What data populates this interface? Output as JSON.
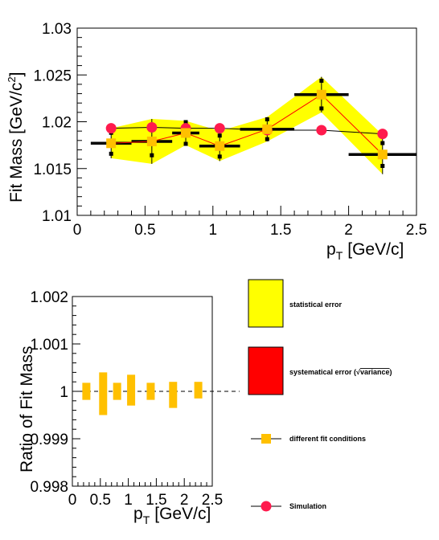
{
  "chart_data": [
    {
      "type": "scatter",
      "xlabel_main": "p",
      "xlabel_sub": "T",
      "xlabel_unit": "[GeV/c]",
      "ylabel_pre": "Fit Mass [GeV/c",
      "ylabel_sup": "2",
      "ylabel_post": "]",
      "xlim": [
        0,
        2.5
      ],
      "ylim": [
        1.01,
        1.03
      ],
      "x_ticks": [
        "0",
        "0.5",
        "1",
        "1.5",
        "2",
        "2.5"
      ],
      "y_ticks": [
        "1.01",
        "1.015",
        "1.02",
        "1.025",
        "1.03"
      ],
      "x_tick_values": [
        0,
        0.5,
        1,
        1.5,
        2,
        2.5
      ],
      "y_tick_values": [
        1.01,
        1.015,
        1.02,
        1.025,
        1.03
      ],
      "data": {
        "x": [
          0.25,
          0.55,
          0.8,
          1.05,
          1.4,
          1.8,
          2.25
        ],
        "xerr": [
          0.15,
          0.15,
          0.1,
          0.15,
          0.2,
          0.2,
          0.25
        ],
        "fit_mass": [
          1.0177,
          1.0179,
          1.0188,
          1.0174,
          1.0192,
          1.0229,
          1.0165
        ],
        "stat_err": [
          0.0016,
          0.0024,
          0.0013,
          0.0016,
          0.0013,
          0.0019,
          0.0021
        ],
        "sys_err": [
          0.0008,
          0.001,
          0.0009,
          0.0008,
          0.0008,
          0.0011,
          0.0008
        ],
        "simulation": [
          1.0193,
          1.0194,
          1.0193,
          1.0193,
          1.0191,
          1.0191,
          1.0187
        ]
      },
      "colors": {
        "stat_band": "#ffff00",
        "fit_points": "#ffc000",
        "fit_line": "#ff0000",
        "simulation": "#ff1a4d",
        "errors": "#000000"
      }
    },
    {
      "type": "bar",
      "xlabel_main": "p",
      "xlabel_sub": "T",
      "xlabel_unit": "[GeV/c]",
      "ylabel": "Ratio of Fit Mass",
      "xlim": [
        0,
        2.5
      ],
      "ylim": [
        0.998,
        1.002
      ],
      "x_ticks": [
        "0",
        "0.5",
        "1",
        "1.5",
        "2",
        "2.5"
      ],
      "y_ticks": [
        "0.998",
        "0.999",
        "1",
        "1.001",
        "1.002"
      ],
      "x_tick_values": [
        0,
        0.5,
        1,
        1.5,
        2,
        2.5
      ],
      "y_tick_values": [
        0.998,
        0.999,
        1,
        1.001,
        1.002
      ],
      "reference_line": 1,
      "data": {
        "x": [
          0.25,
          0.55,
          0.8,
          1.05,
          1.4,
          1.8,
          2.25
        ],
        "low": [
          0.99982,
          0.9995,
          0.99982,
          0.9997,
          0.99982,
          0.99965,
          0.99985
        ],
        "high": [
          1.00018,
          1.0004,
          1.00018,
          1.00035,
          1.00018,
          1.0002,
          1.0002
        ]
      },
      "colors": {
        "bars": "#ffc000"
      }
    }
  ],
  "legend": [
    {
      "label": "statistical error",
      "kind": "box",
      "color": "#ffff00"
    },
    {
      "label": "systematical error (",
      "label_root": "variance",
      "label_end": ")",
      "kind": "box",
      "color": "#ff0000"
    },
    {
      "label": "different fit conditions",
      "kind": "square-marker",
      "color": "#ffc000"
    },
    {
      "label": "Simulation",
      "kind": "circle-marker",
      "color": "#ff1a4d"
    }
  ]
}
